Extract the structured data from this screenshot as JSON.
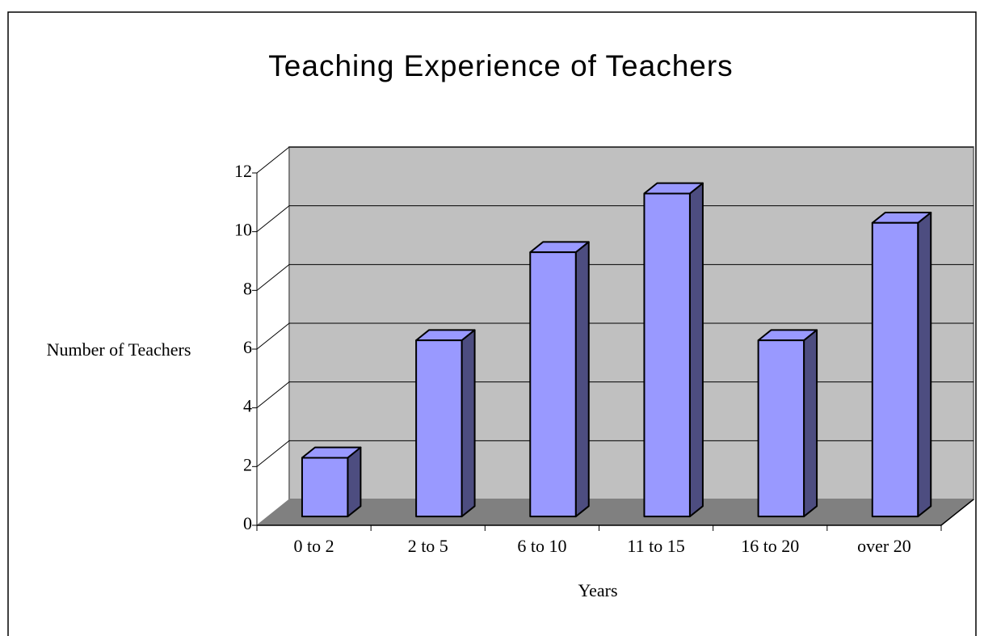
{
  "chart_data": {
    "type": "bar",
    "title": "Teaching Experience of Teachers",
    "x_label": "Years",
    "y_label": "Number of Teachers",
    "categories": [
      "0 to 2",
      "2 to 5",
      "6 to 10",
      "11 to 15",
      "16 to 20",
      "over 20"
    ],
    "values": [
      2,
      6,
      9,
      11,
      6,
      10
    ],
    "color": "#9999ff",
    "ylim": [
      0,
      12
    ],
    "yticks": [
      0,
      2,
      4,
      6,
      8,
      10,
      12
    ],
    "grid": true
  }
}
